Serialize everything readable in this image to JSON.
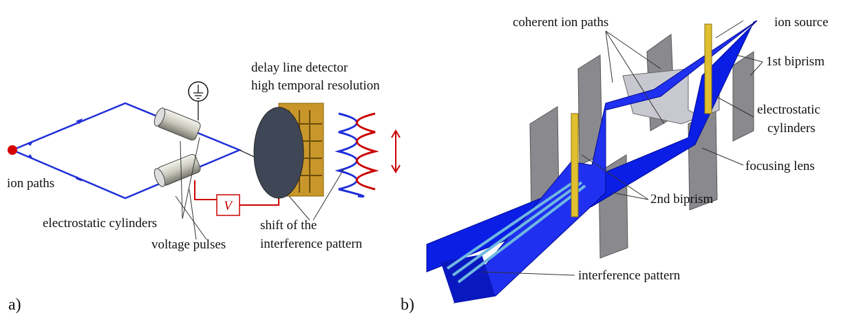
{
  "panel_a": {
    "label": "a)",
    "detector_title": "delay line detector",
    "detector_subtitle": "high temporal resolution",
    "ion_paths": "ion paths",
    "cylinders": "electrostatic cylinders",
    "voltage": "voltage pulses",
    "shift_line1": "shift of the",
    "shift_line2": "interference pattern",
    "voltage_symbol": "V"
  },
  "panel_b": {
    "label": "b)",
    "coherent": "coherent ion paths",
    "source": "ion source",
    "biprism1": "1st biprism",
    "cylinders_line1": "electrostatic",
    "cylinders_line2": "cylinders",
    "lens": "focusing lens",
    "biprism2": "2nd biprism",
    "pattern": "interference pattern"
  }
}
